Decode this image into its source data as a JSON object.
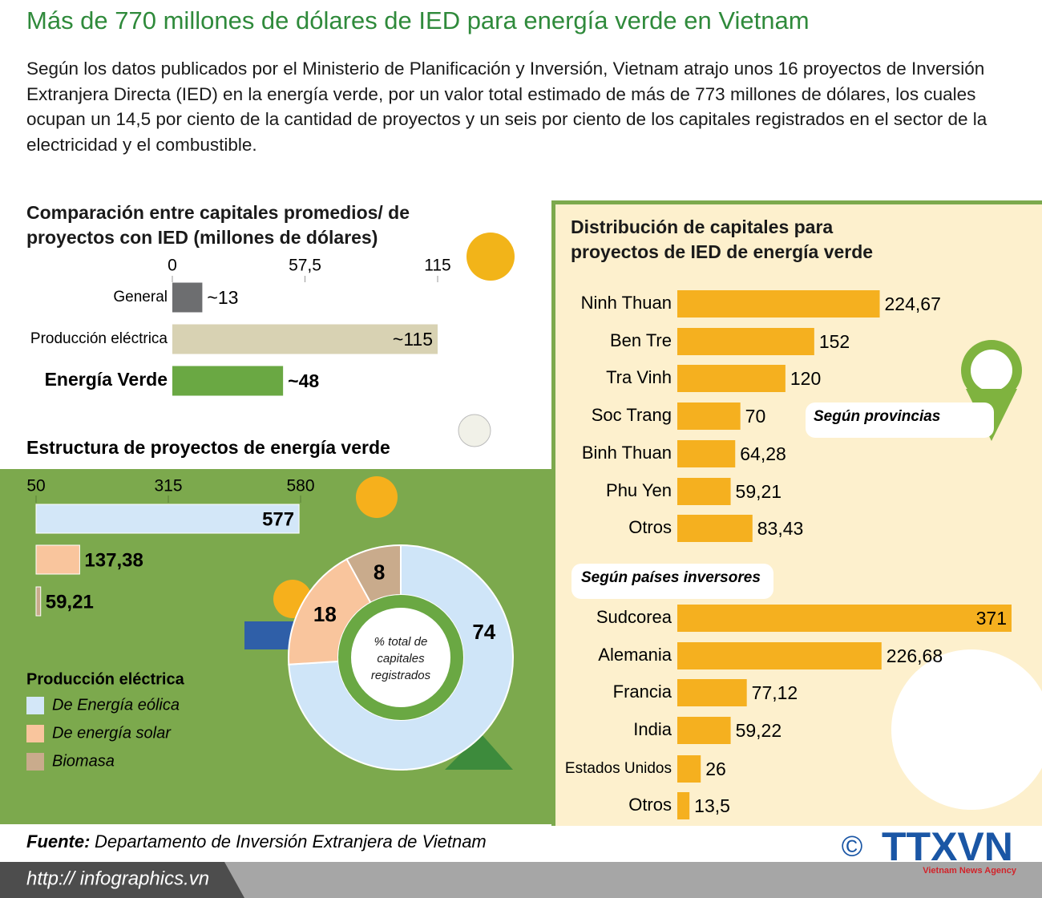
{
  "title": "Más de 770 millones de dólares de IED para energía verde en Vietnam",
  "intro": "Según los datos publicados por el Ministerio de Planificación y Inversión,  Vietnam atrajo unos 16 proyectos de Inversión Extranjera Directa (IED) en la energía verde, por un valor total estimado de más de 773 millones de dólares, los cuales ocupan un 14,5 por ciento de la cantidad de proyectos y un seis por ciento de los capitales registrados en el sector de la electricidad y el combustible.",
  "chart_data": [
    {
      "type": "bar",
      "title": "Comparación entre capitales promedios/ de proyectos con IED (millones de dólares)",
      "categories": [
        "General",
        "Producción eléctrica",
        "Energía Verde"
      ],
      "values": [
        13,
        115,
        48
      ],
      "value_labels": [
        "~13",
        "~115",
        "~48"
      ],
      "colors": [
        "#6d6e70",
        "#d8d2b3",
        "#6aa843"
      ],
      "xlim": [
        0,
        115
      ],
      "xticks": [
        0,
        {
          "value": 57.5,
          "label": "57,5"
        },
        115
      ]
    },
    {
      "type": "bar",
      "title": "Estructura de proyectos de energía verde",
      "legend_title": "Producción eléctrica",
      "categories": [
        "De Energía eólica",
        "De energía solar",
        "Biomasa"
      ],
      "values": [
        577,
        137.38,
        59.21
      ],
      "value_labels": [
        "577",
        "137,38",
        "59,21"
      ],
      "colors": [
        "#d3e7f8",
        "#f9c59d",
        "#c9ab8c"
      ],
      "xlim": [
        50,
        580
      ],
      "xticks": [
        50,
        315,
        580
      ]
    },
    {
      "type": "pie",
      "center_label": "% total de capitales registrados",
      "values": [
        74,
        18,
        8
      ],
      "colors": [
        "#cfe5f8",
        "#f9c59d",
        "#c9ab8c"
      ]
    },
    {
      "type": "bar",
      "title": "Distribución de capitales para proyectos de IED de energía verde",
      "subtitle": "Según provincias",
      "categories": [
        "Ninh Thuan",
        "Ben Tre",
        "Tra Vinh",
        "Soc Trang",
        "Binh Thuan",
        "Phu Yen",
        "Otros"
      ],
      "values": [
        224.67,
        152,
        120,
        70,
        64.28,
        59.21,
        83.43
      ],
      "value_labels": [
        "224,67",
        "152",
        "120",
        "70",
        "64,28",
        "59,21",
        "83,43"
      ],
      "color": "#f5b01f"
    },
    {
      "type": "bar",
      "subtitle": "Según países inversores",
      "categories": [
        "Sudcorea",
        "Alemania",
        "Francia",
        "India",
        "Estados Unidos",
        "Otros"
      ],
      "values": [
        371,
        226.68,
        77.12,
        59.22,
        26,
        13.5
      ],
      "value_labels": [
        "371",
        "226,68",
        "77,12",
        "59,22",
        "26",
        "13,5"
      ],
      "color": "#f5b01f"
    }
  ],
  "source": {
    "label": "Fuente:",
    "text": "Departamento de Inversión Extranjera de Vietnam"
  },
  "url": "http:// infographics.vn",
  "logo": {
    "copyright": "©",
    "name": "TTXVN",
    "tagline": "Vietnam News Agency"
  }
}
